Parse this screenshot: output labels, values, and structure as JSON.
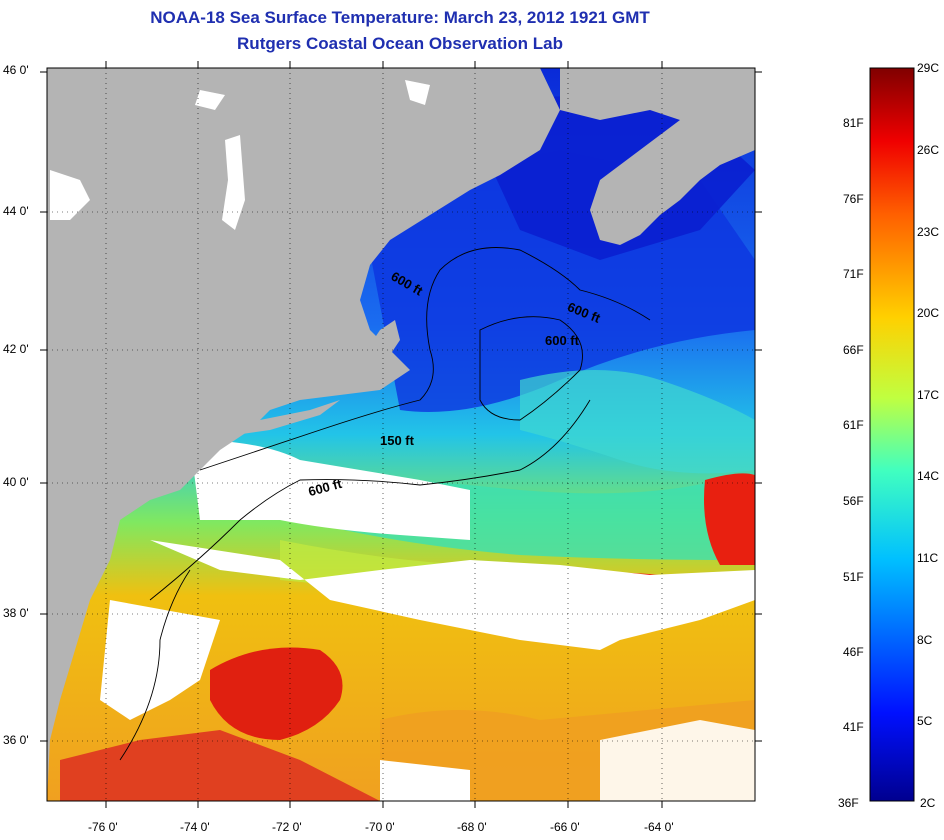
{
  "title_line1": "NOAA-18 Sea Surface Temperature:  March 23, 2012 1921 GMT",
  "title_line2": "Rutgers Coastal Ocean Observation Lab",
  "lat_labels": [
    "46 0'",
    "44 0'",
    "42 0'",
    "40 0'",
    "38 0'",
    "36 0'"
  ],
  "lon_labels": [
    "-76 0'",
    "-74 0'",
    "-72 0'",
    "-70 0'",
    "-68 0'",
    "-66 0'",
    "-64 0'"
  ],
  "contour_labels": [
    "600 ft",
    "600 ft",
    "600 ft",
    "150 ft",
    "600 ft"
  ],
  "colorbar_F": [
    "81F",
    "76F",
    "71F",
    "66F",
    "61F",
    "56F",
    "51F",
    "46F",
    "41F",
    "36F"
  ],
  "colorbar_C": [
    "29C",
    "26C",
    "23C",
    "20C",
    "17C",
    "14C",
    "11C",
    "8C",
    "5C",
    "2C"
  ],
  "colors": {
    "land": "#b4b4b4",
    "cloud": "#ffffff",
    "title": "#1f2fb0"
  }
}
